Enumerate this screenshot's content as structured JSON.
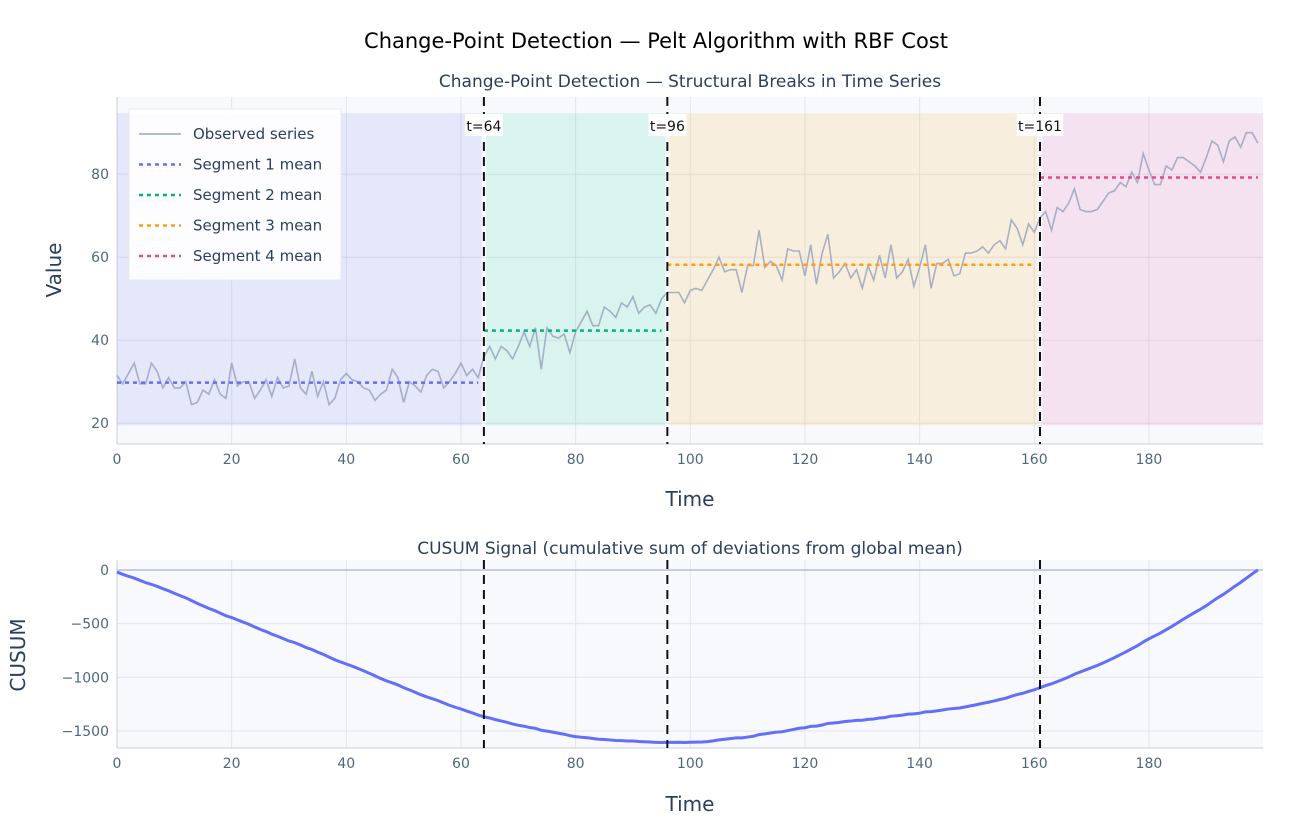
{
  "title": "Change-Point Detection — Pelt Algorithm with RBF Cost",
  "chart_data": [
    {
      "type": "line",
      "title": "Change-Point Detection — Structural Breaks in Time Series",
      "xlabel": "Time",
      "ylabel": "Value",
      "xlim": [
        0,
        199.9
      ],
      "ylim": [
        15,
        98.6
      ],
      "xticks": [
        0,
        20,
        40,
        60,
        80,
        100,
        120,
        140,
        160,
        180
      ],
      "yticks": [
        20,
        40,
        60,
        80
      ],
      "grid": true,
      "legend_position": "top-left",
      "series": [
        {
          "name": "Observed series",
          "color": "#9aa5bd",
          "values": [
            31.5,
            29.5,
            32,
            34.5,
            29.5,
            29.5,
            34.5,
            32.5,
            28.5,
            31,
            28.5,
            28.5,
            30,
            24.5,
            25,
            28,
            27,
            30.5,
            27,
            26,
            34.5,
            29,
            30,
            30,
            26,
            28,
            30.5,
            26.5,
            31,
            28.5,
            29,
            35.5,
            28.5,
            27,
            32.5,
            26.5,
            30,
            24.5,
            26,
            30.5,
            32,
            30.5,
            30,
            28.5,
            28,
            25.5,
            27,
            28,
            33,
            31,
            25,
            30,
            29,
            27.5,
            31.5,
            33,
            32.5,
            28.5,
            30,
            32,
            34.5,
            31.5,
            33,
            31,
            36,
            38.5,
            35.5,
            38.5,
            37.5,
            35.5,
            38.5,
            42,
            38.5,
            43,
            33,
            43,
            41,
            40.5,
            41.5,
            37,
            42,
            44.5,
            47,
            43.5,
            43.5,
            48,
            47,
            45.5,
            49,
            48,
            50.5,
            46.5,
            48,
            48.5,
            46.5,
            50,
            51.5,
            51.5,
            51.5,
            49,
            52,
            52.5,
            52,
            54.5,
            57,
            60,
            56.5,
            57,
            57,
            51.5,
            58,
            58,
            66.5,
            57.5,
            59,
            58,
            54.5,
            62,
            61.5,
            61.5,
            55.5,
            63,
            53.5,
            61,
            65.5,
            55,
            56.5,
            58.5,
            55,
            57,
            52.5,
            58,
            54.5,
            60.5,
            55,
            63,
            55,
            56.5,
            59.5,
            53,
            57.5,
            63,
            52.5,
            58.5,
            58.5,
            59.5,
            55.5,
            56,
            61,
            61,
            61.5,
            62.5,
            61,
            63,
            64,
            62,
            69,
            67,
            63,
            68,
            66,
            69.5,
            71,
            66.5,
            72,
            71,
            73,
            76.5,
            71.5,
            71,
            71,
            71.5,
            73.5,
            75.5,
            76,
            78,
            77,
            80.5,
            78,
            85,
            81,
            77.5,
            77.5,
            82,
            81,
            84,
            84,
            83,
            82,
            80.5,
            84,
            88,
            87,
            83,
            88,
            89,
            86.5,
            90,
            90,
            87.5
          ]
        },
        {
          "name": "Segment 1 mean",
          "color": "#636efa",
          "x": [
            0,
            63
          ],
          "y": 29.8
        },
        {
          "name": "Segment 2 mean",
          "color": "#00b383",
          "x": [
            64,
            95
          ],
          "y": 42.3
        },
        {
          "name": "Segment 3 mean",
          "color": "#ff9f10",
          "x": [
            96,
            160
          ],
          "y": 58.2
        },
        {
          "name": "Segment 4 mean",
          "color": "#e8468e",
          "x": [
            161,
            199
          ],
          "y": 79.2
        }
      ],
      "segment_shading": [
        {
          "x": [
            0,
            63.6
          ],
          "color": "#636efa"
        },
        {
          "x": [
            64.4,
            95.6
          ],
          "color": "#00cc96"
        },
        {
          "x": [
            96.4,
            160.6
          ],
          "color": "#ffa500"
        },
        {
          "x": [
            161.4,
            199.9
          ],
          "color": "#e83e9c"
        }
      ],
      "shade_y": [
        19.5,
        94.7
      ],
      "change_points": [
        64,
        96,
        161
      ],
      "annotations": [
        "t=64",
        "t=96",
        "t=161"
      ]
    },
    {
      "type": "line",
      "title": "CUSUM Signal (cumulative sum of deviations from global mean)",
      "xlabel": "Time",
      "ylabel": "CUSUM",
      "xlim": [
        0,
        199.9
      ],
      "ylim": [
        -1658,
        93
      ],
      "xticks": [
        0,
        20,
        40,
        60,
        80,
        100,
        120,
        140,
        160,
        180
      ],
      "yticks": [
        0,
        -500,
        -1000,
        -1500
      ],
      "ytick_labels": [
        "0",
        "−500",
        "−1000",
        "−1500"
      ],
      "grid": true,
      "series": [
        {
          "name": "CUSUM",
          "color": "#636efa",
          "derived_from": "Observed series"
        }
      ],
      "change_points": [
        64,
        96,
        161
      ]
    }
  ]
}
